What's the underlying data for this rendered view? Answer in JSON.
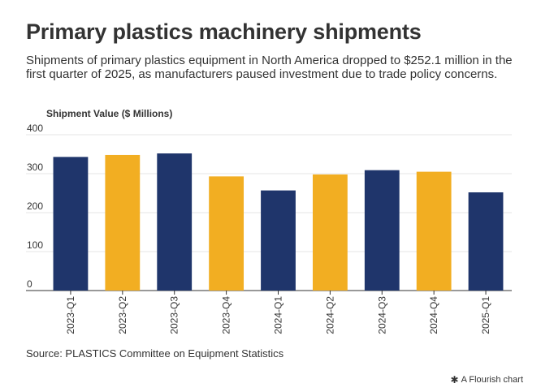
{
  "header": {
    "title": "Primary plastics machinery shipments",
    "subtitle": "Shipments of primary plastics equipment in North America dropped to $252.1 million in the first quarter of 2025, as manufacturers paused investment due to trade policy concerns."
  },
  "footer": {
    "source": "Source: PLASTICS Committee on Equipment Statistics",
    "credit": "A Flourish chart",
    "credit_icon": "flourish-star-icon"
  },
  "colors": {
    "navy": "#1f356b",
    "gold": "#f2ae22",
    "grid": "#e6e6e6",
    "axis": "#333333"
  },
  "chart_data": {
    "type": "bar",
    "title": "",
    "xlabel": "",
    "ylabel": "Shipment Value ($ Millions)",
    "ylim": [
      0,
      400
    ],
    "yticks": [
      0,
      100,
      200,
      300,
      400
    ],
    "grid": true,
    "categories": [
      "2023-Q1",
      "2023-Q2",
      "2023-Q3",
      "2023-Q4",
      "2024-Q1",
      "2024-Q2",
      "2024-Q3",
      "2024-Q4",
      "2025-Q1"
    ],
    "values": [
      343,
      348,
      352,
      293,
      257,
      298,
      309,
      305,
      252.1
    ],
    "bar_colors": [
      "#1f356b",
      "#f2ae22",
      "#1f356b",
      "#f2ae22",
      "#1f356b",
      "#f2ae22",
      "#1f356b",
      "#f2ae22",
      "#1f356b"
    ]
  }
}
